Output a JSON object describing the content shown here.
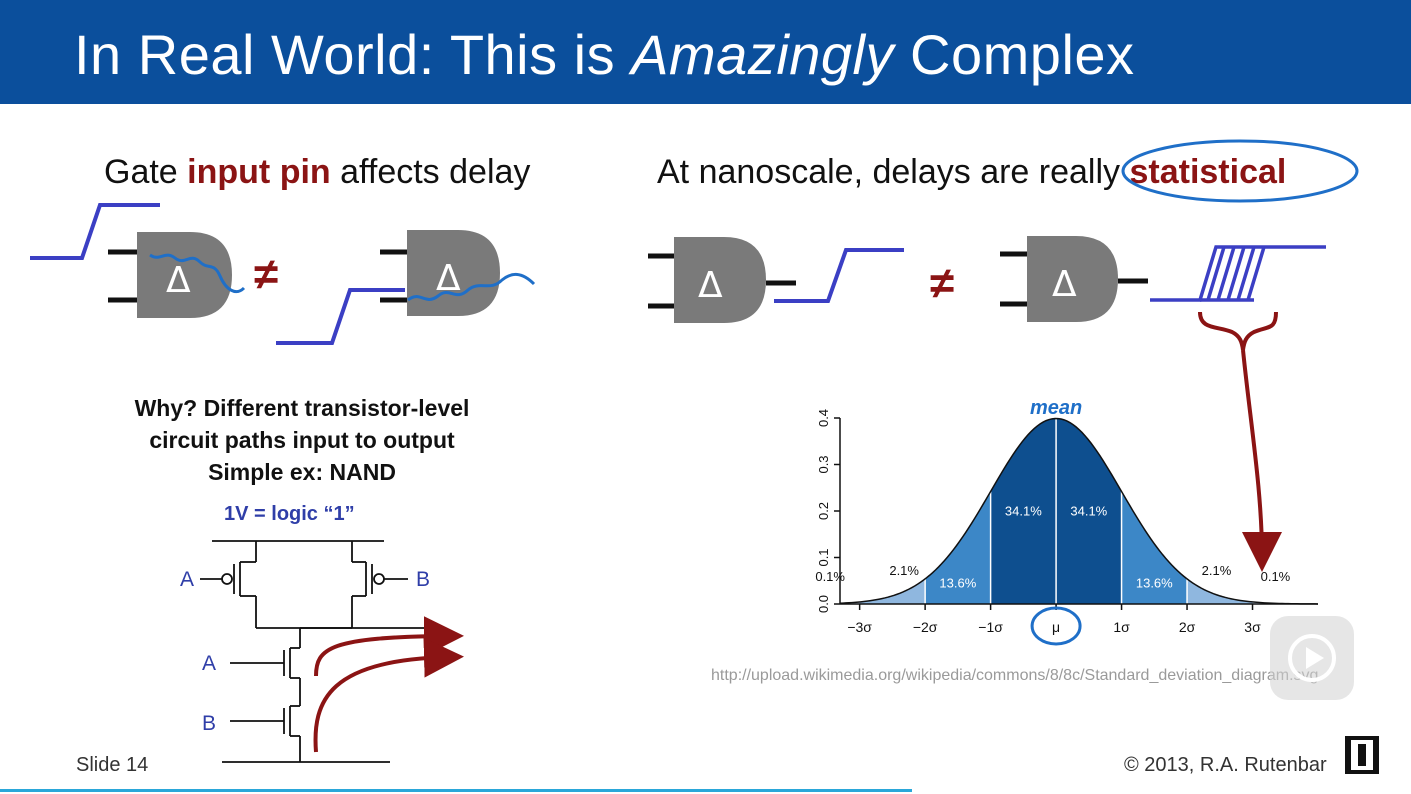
{
  "slide": {
    "title_prefix": "In Real World:  This is ",
    "title_emphasis": "Amazingly",
    "title_suffix": " Complex",
    "left_heading_pre": "Gate ",
    "left_heading_hl": "input pin",
    "left_heading_post": " affects delay",
    "right_heading_pre": "At nanoscale, delays are really ",
    "right_heading_hl": "statistical",
    "why_line1": "Why?  Different transistor-level",
    "why_line2": "circuit paths input to output",
    "why_line3": "Simple ex:  NAND",
    "logic_label": "1V = logic “1”",
    "pin_a": "A",
    "pin_b": "B",
    "not_equal": "≠",
    "delta": "Δ",
    "mean_annotation": "mean",
    "url": "http://upload.wikimedia.org/wikipedia/commons/8/8c/Standard_deviation_diagram.svg",
    "slide_number": "Slide 14",
    "copyright": "© 2013, R.A. Rutenbar"
  },
  "chart_data": {
    "type": "area",
    "y_ticks": [
      "0.0",
      "0.1",
      "0.2",
      "0.3",
      "0.4"
    ],
    "x_ticks": [
      "−3σ",
      "−2σ",
      "−1σ",
      "μ",
      "1σ",
      "2σ",
      "3σ"
    ],
    "ylim": [
      0,
      0.4
    ],
    "xlim": [
      -3.3,
      4.0
    ],
    "region_labels": [
      "0.1%",
      "2.1%",
      "13.6%",
      "34.1%",
      "34.1%",
      "13.6%",
      "2.1%",
      "0.1%"
    ],
    "colors": {
      "band1": "#0e4f8f",
      "band2": "#3c87c7",
      "band3": "#8fb7df",
      "edge": "#c5d8ec"
    }
  },
  "colors": {
    "title_bar": "#0b4f9c",
    "highlight": "#8b1414",
    "wire_blue": "#3b3fc4",
    "annot_blue": "#1f6fc8",
    "gate_gray": "#7a7a7a"
  }
}
